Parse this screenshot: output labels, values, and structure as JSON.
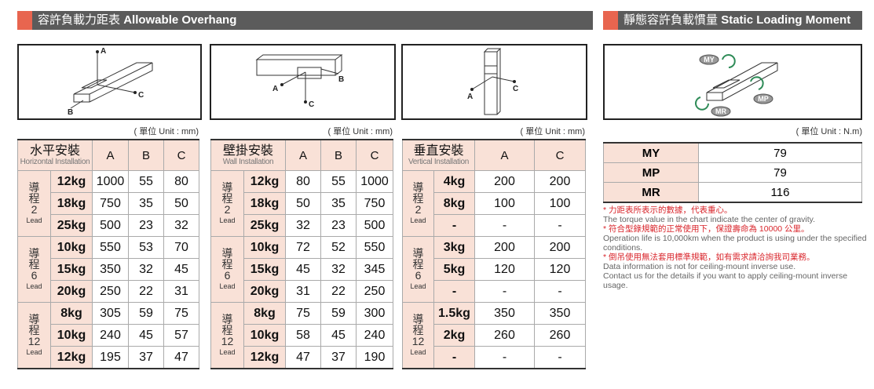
{
  "header_left": {
    "zh": "容許負載力距表",
    "en": "Allowable Overhang"
  },
  "header_right": {
    "zh": "靜態容許負載慣量",
    "en": "Static Loading Moment"
  },
  "panels": [
    {
      "unit": "( 單位 Unit : mm)",
      "diagram_labels": [
        "A",
        "B",
        "C"
      ],
      "name_zh": "水平安裝",
      "name_en": "Horizontal Installation",
      "columns": [
        "A",
        "B",
        "C"
      ],
      "groups": [
        {
          "lead_zh": "導程",
          "lead_num": "2",
          "lead_en": "Lead",
          "rows": [
            [
              "12kg",
              1000,
              55,
              80
            ],
            [
              "18kg",
              750,
              35,
              50
            ],
            [
              "25kg",
              500,
              23,
              32
            ]
          ]
        },
        {
          "lead_zh": "導程",
          "lead_num": "6",
          "lead_en": "Lead",
          "rows": [
            [
              "10kg",
              550,
              53,
              70
            ],
            [
              "15kg",
              350,
              32,
              45
            ],
            [
              "20kg",
              250,
              22,
              31
            ]
          ]
        },
        {
          "lead_zh": "導程",
          "lead_num": "12",
          "lead_en": "Lead",
          "rows": [
            [
              "8kg",
              305,
              59,
              75
            ],
            [
              "10kg",
              240,
              45,
              57
            ],
            [
              "12kg",
              195,
              37,
              47
            ]
          ]
        }
      ]
    },
    {
      "unit": "( 單位 Unit : mm)",
      "diagram_labels": [
        "A",
        "B",
        "C"
      ],
      "name_zh": "壁掛安裝",
      "name_en": "Wall Installation",
      "columns": [
        "A",
        "B",
        "C"
      ],
      "groups": [
        {
          "lead_zh": "導程",
          "lead_num": "2",
          "lead_en": "Lead",
          "rows": [
            [
              "12kg",
              80,
              55,
              1000
            ],
            [
              "18kg",
              50,
              35,
              750
            ],
            [
              "25kg",
              32,
              23,
              500
            ]
          ]
        },
        {
          "lead_zh": "導程",
          "lead_num": "6",
          "lead_en": "Lead",
          "rows": [
            [
              "10kg",
              72,
              52,
              550
            ],
            [
              "15kg",
              45,
              32,
              345
            ],
            [
              "20kg",
              31,
              22,
              250
            ]
          ]
        },
        {
          "lead_zh": "導程",
          "lead_num": "12",
          "lead_en": "Lead",
          "rows": [
            [
              "8kg",
              75,
              59,
              300
            ],
            [
              "10kg",
              58,
              45,
              240
            ],
            [
              "12kg",
              47,
              37,
              190
            ]
          ]
        }
      ]
    },
    {
      "unit": "( 單位 Unit : mm)",
      "diagram_labels": [
        "A",
        "C"
      ],
      "name_zh": "垂直安裝",
      "name_en": "Vertical Installation",
      "columns": [
        "A",
        "C"
      ],
      "groups": [
        {
          "lead_zh": "導程",
          "lead_num": "2",
          "lead_en": "Lead",
          "rows": [
            [
              "4kg",
              200,
              200
            ],
            [
              "8kg",
              100,
              100
            ],
            [
              "-",
              "-",
              "-"
            ]
          ]
        },
        {
          "lead_zh": "導程",
          "lead_num": "6",
          "lead_en": "Lead",
          "rows": [
            [
              "3kg",
              200,
              200
            ],
            [
              "5kg",
              120,
              120
            ],
            [
              "-",
              "-",
              "-"
            ]
          ]
        },
        {
          "lead_zh": "導程",
          "lead_num": "12",
          "lead_en": "Lead",
          "rows": [
            [
              "1.5kg",
              350,
              350
            ],
            [
              "2kg",
              260,
              260
            ],
            [
              "-",
              "-",
              "-"
            ]
          ]
        }
      ]
    }
  ],
  "moment": {
    "unit": "( 單位 Unit : N.m)",
    "rows": [
      [
        "MY",
        79
      ],
      [
        "MP",
        79
      ],
      [
        "MR",
        116
      ]
    ]
  },
  "notes": [
    {
      "zh": "* 力距表所表示的數據，代表重心。",
      "en": [
        "The torque value in the chart indicate the center of gravity."
      ]
    },
    {
      "zh": "* 符合型錄規範的正常使用下，保證壽命為 10000 公里。",
      "en": [
        "Operation life is 10,000km when the product is using under the specified conditions."
      ]
    },
    {
      "zh": "* 倒吊使用無法套用標準規範，如有需求請洽詢我司業務。",
      "en": [
        "Data information is not for ceiling-mount inverse use.",
        "Contact us for the details if you want to apply ceiling-mount inverse usage."
      ]
    }
  ]
}
